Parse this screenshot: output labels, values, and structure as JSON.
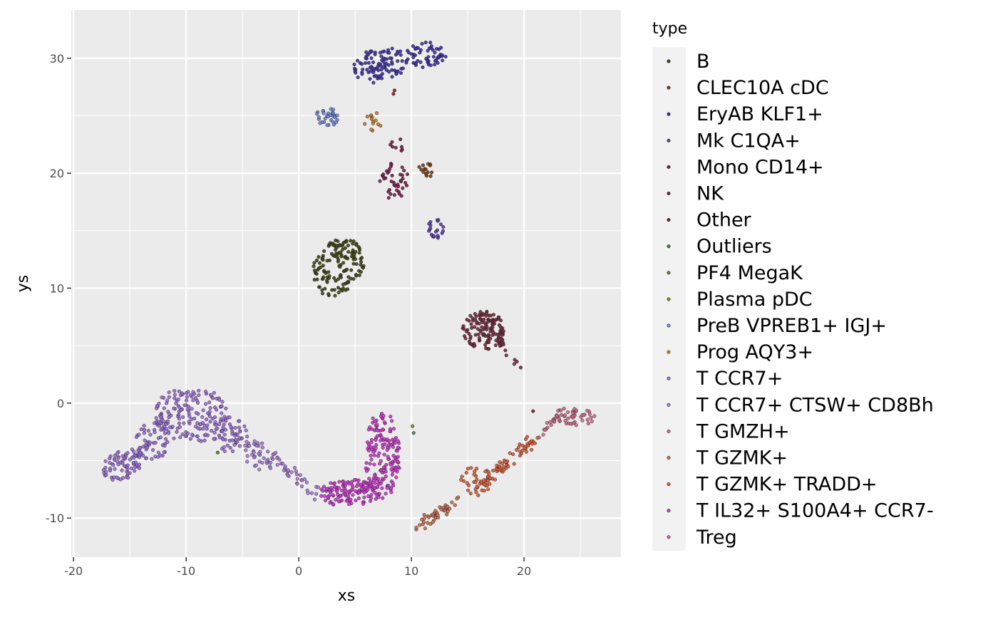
{
  "chart_data": {
    "type": "scatter",
    "xlabel": "xs",
    "ylabel": "ys",
    "xlim": [
      -20.2,
      28.6
    ],
    "ylim": [
      -13.4,
      34.2
    ],
    "x_ticks": [
      -20,
      -10,
      0,
      10,
      20
    ],
    "y_ticks": [
      -10,
      0,
      10,
      20,
      30
    ],
    "grid": true,
    "panel_background": "#ebebeb",
    "legend": {
      "title": "type",
      "position": "right"
    },
    "series": [
      {
        "name": "B",
        "color": "#3f4412",
        "clusters": [
          {
            "shape": "ellipse",
            "cx": 3.5,
            "cy": 11.8,
            "rx": 2.1,
            "ry": 2.7,
            "rot": -35,
            "n": 150
          }
        ]
      },
      {
        "name": "CLEC10A cDC",
        "color": "#7a3b12",
        "clusters": [
          {
            "shape": "ellipse",
            "cx": 11.4,
            "cy": 20.3,
            "rx": 0.8,
            "ry": 0.6,
            "rot": 0,
            "n": 14
          }
        ]
      },
      {
        "name": "EryAB KLF1+",
        "color": "#3b2fa8",
        "clusters": [
          {
            "shape": "ellipse",
            "cx": 7.2,
            "cy": 29.4,
            "rx": 2.5,
            "ry": 1.5,
            "rot": 10,
            "n": 95
          },
          {
            "shape": "ellipse",
            "cx": 11.3,
            "cy": 30.3,
            "rx": 1.8,
            "ry": 1.1,
            "rot": 0,
            "n": 55
          }
        ]
      },
      {
        "name": "Mk C1QA+",
        "color": "#5a3cb0",
        "clusters": [
          {
            "shape": "ellipse",
            "cx": 12.2,
            "cy": 15.1,
            "rx": 0.8,
            "ry": 0.9,
            "rot": 0,
            "n": 22
          }
        ]
      },
      {
        "name": "Mono CD14+",
        "color": "#7a1a4d",
        "clusters": [
          {
            "shape": "ellipse",
            "cx": 8.5,
            "cy": 19.3,
            "rx": 1.3,
            "ry": 1.6,
            "rot": 0,
            "n": 40
          },
          {
            "shape": "ellipse",
            "cx": 8.8,
            "cy": 22.5,
            "rx": 0.7,
            "ry": 0.8,
            "rot": 0,
            "n": 8
          }
        ]
      },
      {
        "name": "NK",
        "color": "#72283a",
        "clusters": [
          {
            "shape": "ellipse",
            "cx": 16.4,
            "cy": 6.3,
            "rx": 1.9,
            "ry": 1.7,
            "rot": 0,
            "n": 130
          },
          {
            "shape": "line",
            "x0": 17.5,
            "y0": 6.0,
            "x1": 19.6,
            "y1": 2.8,
            "w": 0.35,
            "n": 14
          }
        ]
      },
      {
        "name": "Other",
        "color": "#8b1a1a",
        "points": [
          [
            20.8,
            -0.7
          ],
          [
            8.5,
            27.2
          ],
          [
            8.4,
            26.9
          ]
        ]
      },
      {
        "name": "Outliers",
        "color": "#4e7a2e",
        "points": [
          [
            -7.2,
            -4.3
          ],
          [
            -5.6,
            -3.5
          ]
        ]
      },
      {
        "name": "PF4 MegaK",
        "color": "#5f7a4a",
        "points": [
          [
            10.2,
            -2.6
          ]
        ]
      },
      {
        "name": "Plasma pDC",
        "color": "#7b8a2a",
        "points": [
          [
            10.1,
            -2.0
          ]
        ]
      },
      {
        "name": "PreB VPREB1+ IGJ+",
        "color": "#6b87d6",
        "clusters": [
          {
            "shape": "ellipse",
            "cx": 2.5,
            "cy": 24.9,
            "rx": 1.0,
            "ry": 0.9,
            "rot": 0,
            "n": 32
          }
        ]
      },
      {
        "name": "Prog AQY3+",
        "color": "#c57a2a",
        "clusters": [
          {
            "shape": "ellipse",
            "cx": 6.6,
            "cy": 24.5,
            "rx": 0.8,
            "ry": 0.8,
            "rot": 0,
            "n": 14
          }
        ]
      },
      {
        "name": "T CCR7+",
        "color": "#9b6adc",
        "clusters": [
          {
            "shape": "ellipse",
            "cx": -9.6,
            "cy": -1.0,
            "rx": 3.2,
            "ry": 2.5,
            "rot": 0,
            "n": 170
          },
          {
            "shape": "ellipse",
            "cx": -15.6,
            "cy": -5.3,
            "rx": 1.9,
            "ry": 1.3,
            "rot": 25,
            "n": 80
          },
          {
            "shape": "ellipse",
            "cx": -13.0,
            "cy": -3.2,
            "rx": 1.5,
            "ry": 1.8,
            "rot": 0,
            "n": 55
          },
          {
            "shape": "ellipse",
            "cx": -6.0,
            "cy": -2.7,
            "rx": 1.6,
            "ry": 1.6,
            "rot": 0,
            "n": 55
          }
        ]
      },
      {
        "name": "T CCR7+ CTSW+ CD8Bh",
        "color": "#a678d8",
        "clusters": [
          {
            "shape": "ellipse",
            "cx": -3.5,
            "cy": -4.5,
            "rx": 1.8,
            "ry": 1.2,
            "rot": -30,
            "n": 45
          },
          {
            "shape": "line",
            "x0": -1.5,
            "y0": -5.5,
            "x1": 2.5,
            "y1": -8.3,
            "w": 0.6,
            "n": 35
          }
        ]
      },
      {
        "name": "T GMZH+",
        "color": "#d06b8a",
        "clusters": [
          {
            "shape": "ellipse",
            "cx": 24.4,
            "cy": -1.2,
            "rx": 2.0,
            "ry": 0.8,
            "rot": 0,
            "n": 50
          },
          {
            "shape": "line",
            "x0": 21.3,
            "y0": -2.8,
            "x1": 23.0,
            "y1": -1.5,
            "w": 0.4,
            "n": 14
          }
        ]
      },
      {
        "name": "T GZMK+",
        "color": "#c96a4a",
        "clusters": [
          {
            "shape": "line",
            "x0": 10.4,
            "y0": -10.8,
            "x1": 14.0,
            "y1": -8.6,
            "w": 0.5,
            "n": 45
          }
        ]
      },
      {
        "name": "T GZMK+ TRADD+",
        "color": "#e05a32",
        "clusters": [
          {
            "shape": "ellipse",
            "cx": 15.8,
            "cy": -6.8,
            "rx": 1.5,
            "ry": 1.3,
            "rot": 0,
            "n": 45
          },
          {
            "shape": "line",
            "x0": 17.0,
            "y0": -6.4,
            "x1": 21.0,
            "y1": -3.1,
            "w": 0.45,
            "n": 55
          }
        ]
      },
      {
        "name": "T IL32+ S100A4+ CCR7-",
        "color": "#d132d1",
        "clusters": [
          {
            "shape": "ellipse",
            "cx": 7.4,
            "cy": -4.5,
            "rx": 1.6,
            "ry": 3.8,
            "rot": 0,
            "n": 170
          },
          {
            "shape": "ellipse",
            "cx": 4.5,
            "cy": -7.8,
            "rx": 2.7,
            "ry": 1.2,
            "rot": 0,
            "n": 120
          }
        ]
      },
      {
        "name": "Treg",
        "color": "#d85aa8",
        "clusters": []
      }
    ]
  }
}
